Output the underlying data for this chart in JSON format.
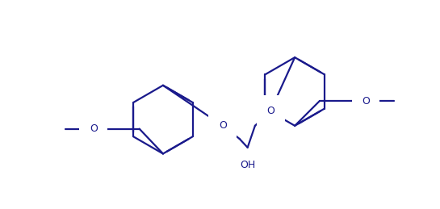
{
  "background": "#ffffff",
  "line_color": "#1a1a8c",
  "line_width": 1.6,
  "font_size": 9,
  "fig_width": 5.45,
  "fig_height": 2.59,
  "dpi": 100,
  "xlim": [
    0,
    545
  ],
  "ylim": [
    0,
    259
  ]
}
